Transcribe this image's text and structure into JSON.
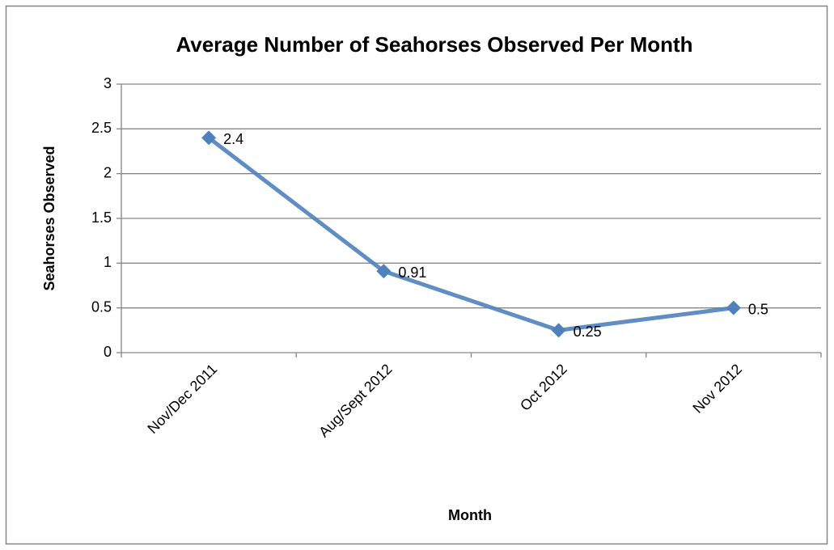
{
  "chart_data": {
    "type": "line",
    "title": "Average Number of Seahorses Observed Per Month",
    "x_label": "Month",
    "y_label": "Seahorses Observed",
    "categories": [
      "Nov/Dec 2011",
      "Aug/Sept 2012",
      "Oct 2012",
      "Nov 2012"
    ],
    "values": [
      2.4,
      0.91,
      0.25,
      0.5
    ],
    "color": "#4f81bd",
    "ylim": [
      0,
      3
    ],
    "yticks": [
      0,
      0.5,
      1,
      1.5,
      2,
      2.5,
      3
    ],
    "grid": true,
    "data_labels": true
  }
}
